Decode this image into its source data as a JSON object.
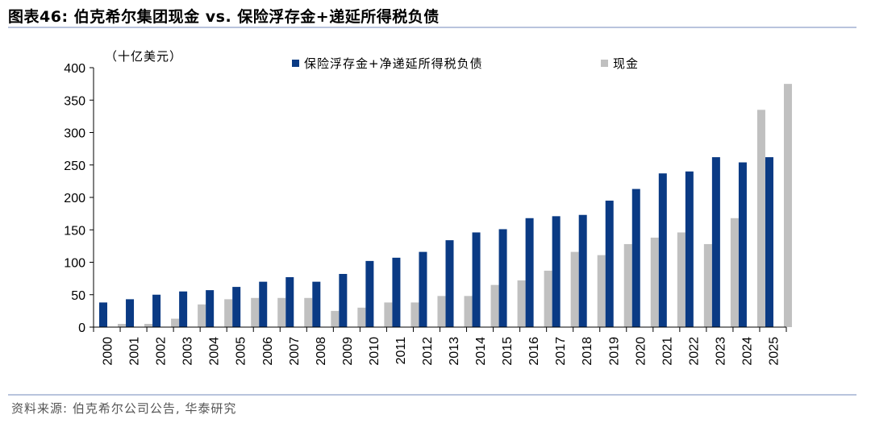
{
  "header": {
    "title": "图表46:  伯克希尔集团现金 vs. 保险浮存金+递延所得税负债"
  },
  "footer": {
    "source": "资料来源: 伯克希尔公司公告, 华泰研究"
  },
  "colors": {
    "series_float": "#0a3a84",
    "series_cash": "#c0c0c0",
    "rule": "#b9c4dd"
  },
  "chart_data": {
    "type": "bar",
    "unit_label": "（十亿美元）",
    "categories": [
      "2000",
      "2001",
      "2002",
      "2003",
      "2004",
      "2005",
      "2006",
      "2007",
      "2008",
      "2009",
      "2010",
      "2011",
      "2012",
      "2013",
      "2014",
      "2015",
      "2016",
      "2017",
      "2018",
      "2019",
      "2020",
      "2021",
      "2022",
      "2023",
      "2024",
      "2025"
    ],
    "series": [
      {
        "name": "保险浮存金+净递延所得税负债",
        "values": [
          38,
          43,
          50,
          55,
          57,
          62,
          70,
          77,
          70,
          82,
          102,
          107,
          116,
          134,
          146,
          151,
          168,
          171,
          173,
          195,
          213,
          237,
          240,
          262,
          254,
          262
        ]
      },
      {
        "name": "现金",
        "values": [
          5,
          5,
          13,
          35,
          43,
          45,
          45,
          45,
          25,
          30,
          38,
          38,
          48,
          48,
          65,
          72,
          87,
          116,
          111,
          128,
          138,
          146,
          128,
          168,
          335,
          375
        ]
      }
    ],
    "ylim": [
      0,
      400
    ],
    "yticks": [
      0,
      50,
      100,
      150,
      200,
      250,
      300,
      350,
      400
    ],
    "legend_position": "top",
    "grid": false
  }
}
